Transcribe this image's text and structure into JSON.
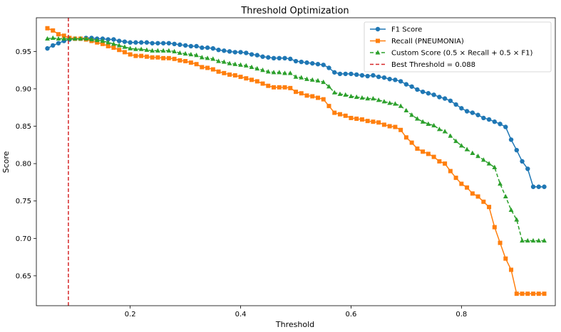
{
  "chart_data": {
    "type": "line",
    "title": "Threshold Optimization",
    "xlabel": "Threshold",
    "ylabel": "Score",
    "xlim": [
      0.03,
      0.97
    ],
    "ylim": [
      0.61,
      0.995
    ],
    "xticks": [
      0.2,
      0.4,
      0.6,
      0.8
    ],
    "xtick_labels": [
      "0.2",
      "0.4",
      "0.6",
      "0.8"
    ],
    "yticks": [
      0.65,
      0.7,
      0.75,
      0.8,
      0.85,
      0.9,
      0.95
    ],
    "ytick_labels": [
      "0.65",
      "0.70",
      "0.75",
      "0.80",
      "0.85",
      "0.90",
      "0.95"
    ],
    "grid": false,
    "legend_position": "top-right",
    "x": [
      0.05,
      0.06,
      0.07,
      0.08,
      0.09,
      0.1,
      0.11,
      0.12,
      0.13,
      0.14,
      0.15,
      0.16,
      0.17,
      0.18,
      0.19,
      0.2,
      0.21,
      0.22,
      0.23,
      0.24,
      0.25,
      0.26,
      0.27,
      0.28,
      0.29,
      0.3,
      0.31,
      0.32,
      0.33,
      0.34,
      0.35,
      0.36,
      0.37,
      0.38,
      0.39,
      0.4,
      0.41,
      0.42,
      0.43,
      0.44,
      0.45,
      0.46,
      0.47,
      0.48,
      0.49,
      0.5,
      0.51,
      0.52,
      0.53,
      0.54,
      0.55,
      0.56,
      0.57,
      0.58,
      0.59,
      0.6,
      0.61,
      0.62,
      0.63,
      0.64,
      0.65,
      0.66,
      0.67,
      0.68,
      0.69,
      0.7,
      0.71,
      0.72,
      0.73,
      0.74,
      0.75,
      0.76,
      0.77,
      0.78,
      0.79,
      0.8,
      0.81,
      0.82,
      0.83,
      0.84,
      0.85,
      0.86,
      0.87,
      0.88,
      0.89,
      0.9,
      0.91,
      0.92,
      0.93,
      0.94,
      0.95
    ],
    "series": [
      {
        "name": "F1 Score",
        "color": "#1f77b4",
        "marker": "circle",
        "linestyle": "solid",
        "values": [
          0.954,
          0.958,
          0.961,
          0.964,
          0.966,
          0.967,
          0.967,
          0.968,
          0.968,
          0.967,
          0.967,
          0.966,
          0.966,
          0.964,
          0.963,
          0.962,
          0.962,
          0.962,
          0.962,
          0.961,
          0.961,
          0.961,
          0.961,
          0.96,
          0.959,
          0.958,
          0.957,
          0.957,
          0.955,
          0.955,
          0.954,
          0.952,
          0.951,
          0.95,
          0.949,
          0.949,
          0.948,
          0.946,
          0.945,
          0.943,
          0.942,
          0.941,
          0.941,
          0.941,
          0.94,
          0.937,
          0.936,
          0.935,
          0.934,
          0.933,
          0.932,
          0.928,
          0.922,
          0.92,
          0.92,
          0.92,
          0.919,
          0.918,
          0.917,
          0.918,
          0.916,
          0.915,
          0.913,
          0.912,
          0.91,
          0.906,
          0.903,
          0.899,
          0.896,
          0.894,
          0.892,
          0.889,
          0.887,
          0.884,
          0.879,
          0.874,
          0.87,
          0.868,
          0.865,
          0.861,
          0.859,
          0.856,
          0.853,
          0.849,
          0.832,
          0.818,
          0.803,
          0.793,
          0.769,
          0.769,
          0.769
        ]
      },
      {
        "name": "Recall (PNEUMONIA)",
        "color": "#ff7f0e",
        "marker": "square",
        "linestyle": "solid",
        "values": [
          0.981,
          0.978,
          0.973,
          0.971,
          0.968,
          0.967,
          0.967,
          0.966,
          0.964,
          0.962,
          0.96,
          0.957,
          0.955,
          0.952,
          0.949,
          0.946,
          0.944,
          0.944,
          0.943,
          0.942,
          0.942,
          0.941,
          0.941,
          0.94,
          0.938,
          0.937,
          0.935,
          0.933,
          0.929,
          0.928,
          0.926,
          0.923,
          0.921,
          0.919,
          0.918,
          0.916,
          0.914,
          0.912,
          0.91,
          0.907,
          0.904,
          0.902,
          0.902,
          0.902,
          0.901,
          0.896,
          0.894,
          0.891,
          0.89,
          0.888,
          0.886,
          0.877,
          0.868,
          0.866,
          0.864,
          0.861,
          0.86,
          0.859,
          0.857,
          0.856,
          0.855,
          0.852,
          0.85,
          0.849,
          0.845,
          0.835,
          0.828,
          0.82,
          0.816,
          0.813,
          0.809,
          0.803,
          0.8,
          0.79,
          0.781,
          0.773,
          0.768,
          0.76,
          0.756,
          0.749,
          0.742,
          0.715,
          0.694,
          0.673,
          0.658,
          0.626,
          0.626,
          0.626,
          0.626,
          0.626,
          0.626
        ]
      },
      {
        "name": "Custom Score (0.5 × Recall + 0.5 × F1)",
        "color": "#2ca02c",
        "marker": "triangle",
        "linestyle": "dashed",
        "values": [
          0.967,
          0.968,
          0.967,
          0.967,
          0.967,
          0.967,
          0.967,
          0.967,
          0.966,
          0.965,
          0.964,
          0.962,
          0.96,
          0.958,
          0.956,
          0.954,
          0.953,
          0.953,
          0.952,
          0.951,
          0.951,
          0.951,
          0.951,
          0.95,
          0.948,
          0.947,
          0.946,
          0.945,
          0.942,
          0.941,
          0.94,
          0.937,
          0.936,
          0.934,
          0.933,
          0.932,
          0.931,
          0.929,
          0.927,
          0.925,
          0.923,
          0.922,
          0.922,
          0.921,
          0.921,
          0.916,
          0.915,
          0.913,
          0.912,
          0.911,
          0.909,
          0.903,
          0.895,
          0.893,
          0.892,
          0.89,
          0.889,
          0.888,
          0.887,
          0.887,
          0.885,
          0.883,
          0.881,
          0.88,
          0.877,
          0.871,
          0.865,
          0.86,
          0.856,
          0.853,
          0.851,
          0.846,
          0.843,
          0.837,
          0.83,
          0.824,
          0.819,
          0.814,
          0.81,
          0.805,
          0.8,
          0.795,
          0.773,
          0.756,
          0.738,
          0.725,
          0.697,
          0.697,
          0.697,
          0.697,
          0.697
        ]
      }
    ],
    "reference_line": {
      "name": "Best Threshold = 0.088",
      "x": 0.088,
      "color": "#d62728",
      "linestyle": "dashed"
    }
  }
}
